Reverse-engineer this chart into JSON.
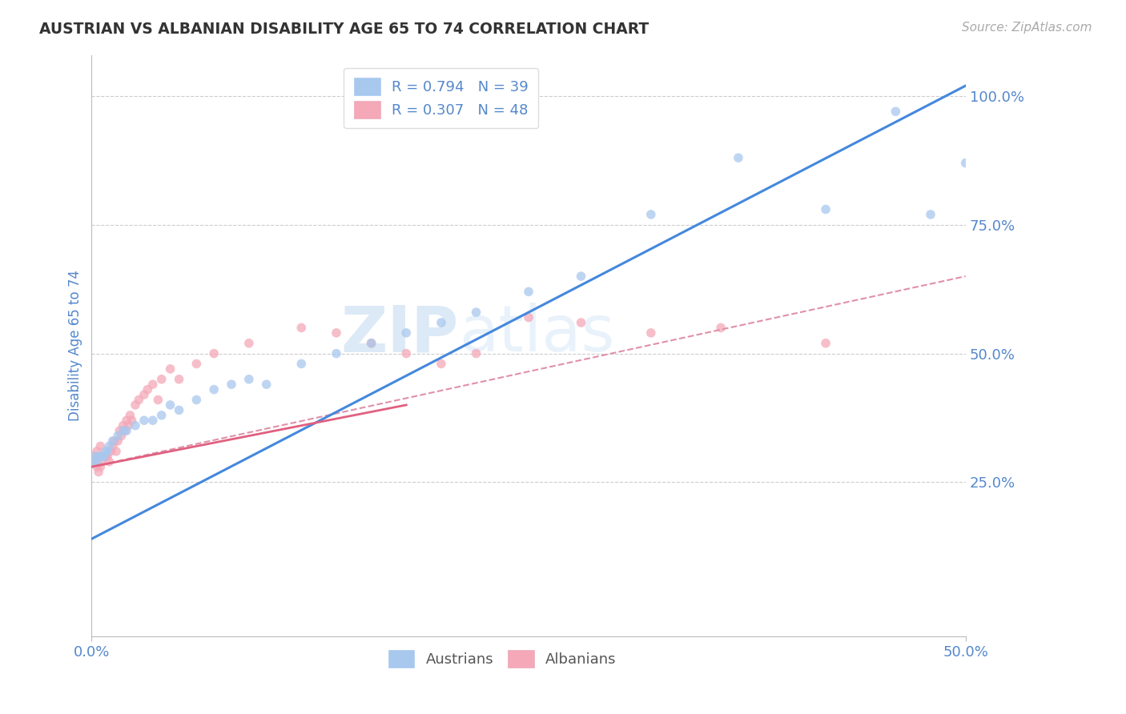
{
  "title": "AUSTRIAN VS ALBANIAN DISABILITY AGE 65 TO 74 CORRELATION CHART",
  "source": "Source: ZipAtlas.com",
  "ylabel_label": "Disability Age 65 to 74",
  "legend": {
    "austrians": {
      "R": "0.794",
      "N": "39",
      "color": "#a8c8ee"
    },
    "albanians": {
      "R": "0.307",
      "N": "48",
      "color": "#f4a8b8"
    }
  },
  "watermark": "ZIPatlas",
  "xlim": [
    0.0,
    0.5
  ],
  "ylim": [
    -0.05,
    1.08
  ],
  "yticks": [
    0.25,
    0.5,
    0.75,
    1.0
  ],
  "yticklabels": [
    "25.0%",
    "50.0%",
    "75.0%",
    "100.0%"
  ],
  "background_color": "#ffffff",
  "grid_color": "#cccccc",
  "axis_color": "#bbbbbb",
  "title_color": "#333333",
  "label_color": "#5588cc",
  "austrian_scatter": {
    "x": [
      0.001,
      0.002,
      0.003,
      0.004,
      0.005,
      0.006,
      0.007,
      0.008,
      0.009,
      0.01,
      0.012,
      0.015,
      0.018,
      0.02,
      0.025,
      0.03,
      0.035,
      0.04,
      0.045,
      0.05,
      0.06,
      0.07,
      0.08,
      0.09,
      0.1,
      0.12,
      0.14,
      0.16,
      0.18,
      0.2,
      0.22,
      0.25,
      0.28,
      0.32,
      0.37,
      0.42,
      0.46,
      0.48,
      0.5
    ],
    "y": [
      0.29,
      0.3,
      0.29,
      0.3,
      0.3,
      0.3,
      0.3,
      0.31,
      0.31,
      0.32,
      0.33,
      0.34,
      0.35,
      0.35,
      0.36,
      0.37,
      0.37,
      0.38,
      0.4,
      0.39,
      0.41,
      0.43,
      0.44,
      0.45,
      0.44,
      0.48,
      0.5,
      0.52,
      0.54,
      0.56,
      0.58,
      0.62,
      0.65,
      0.77,
      0.88,
      0.78,
      0.97,
      0.77,
      0.87
    ],
    "color": "#a8c8ee",
    "size": 70
  },
  "albanian_scatter": {
    "x": [
      0.001,
      0.002,
      0.003,
      0.003,
      0.004,
      0.005,
      0.005,
      0.006,
      0.007,
      0.008,
      0.009,
      0.01,
      0.011,
      0.012,
      0.013,
      0.014,
      0.015,
      0.016,
      0.017,
      0.018,
      0.019,
      0.02,
      0.021,
      0.022,
      0.023,
      0.025,
      0.027,
      0.03,
      0.032,
      0.035,
      0.038,
      0.04,
      0.045,
      0.05,
      0.06,
      0.07,
      0.09,
      0.12,
      0.14,
      0.16,
      0.18,
      0.2,
      0.22,
      0.25,
      0.28,
      0.32,
      0.36,
      0.42
    ],
    "y": [
      0.29,
      0.3,
      0.28,
      0.31,
      0.27,
      0.28,
      0.32,
      0.29,
      0.3,
      0.3,
      0.3,
      0.29,
      0.31,
      0.32,
      0.33,
      0.31,
      0.33,
      0.35,
      0.34,
      0.36,
      0.35,
      0.37,
      0.36,
      0.38,
      0.37,
      0.4,
      0.41,
      0.42,
      0.43,
      0.44,
      0.41,
      0.45,
      0.47,
      0.45,
      0.48,
      0.5,
      0.52,
      0.55,
      0.54,
      0.52,
      0.5,
      0.48,
      0.5,
      0.57,
      0.56,
      0.54,
      0.55,
      0.52
    ],
    "color": "#f4a8b8",
    "size": 70
  },
  "austrian_line": {
    "x0": 0.0,
    "y0": 0.14,
    "x1": 0.5,
    "y1": 1.02,
    "color": "#4488dd",
    "linewidth": 2.2
  },
  "albanian_line_solid": {
    "x0": 0.0,
    "y0": 0.28,
    "x1": 0.18,
    "y1": 0.4,
    "color": "#e06080",
    "linewidth": 2.0,
    "linestyle": "-"
  },
  "albanian_line_dashed": {
    "x0": 0.0,
    "y0": 0.28,
    "x1": 0.5,
    "y1": 0.65,
    "color": "#e090a8",
    "linewidth": 1.5,
    "linestyle": "--"
  }
}
